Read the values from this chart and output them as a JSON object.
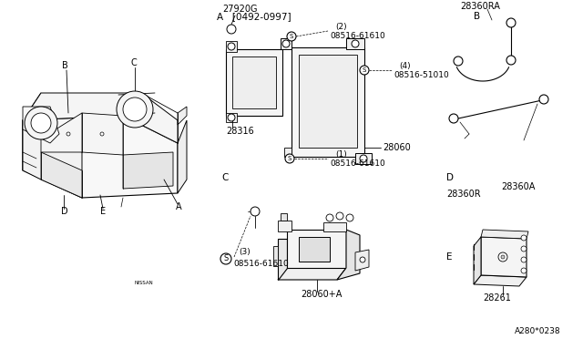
{
  "bg_color": "#ffffff",
  "line_color": "#000000",
  "diagram_code": "A280*0238",
  "section_A_label": "A   [0492-0997]",
  "section_B_label": "B",
  "section_C_label": "C",
  "section_D_label": "D",
  "section_E_label": "E",
  "part_28060A": "28060+A",
  "part_08516_61610_3": "08516-61610",
  "part_28261": "28261",
  "part_28316": "28316",
  "part_28060": "28060",
  "part_08516_61610_1": "08516-61610",
  "part_08516_51010_4": "08516-51010",
  "part_08516_61610_2": "08516-61610",
  "part_27920G": "27920G",
  "part_28360A": "28360A",
  "part_28360R": "28360R",
  "part_28360RA": "28360RA",
  "label_A": "A",
  "label_B": "B",
  "label_C": "C",
  "label_D": "D",
  "label_E": "E"
}
